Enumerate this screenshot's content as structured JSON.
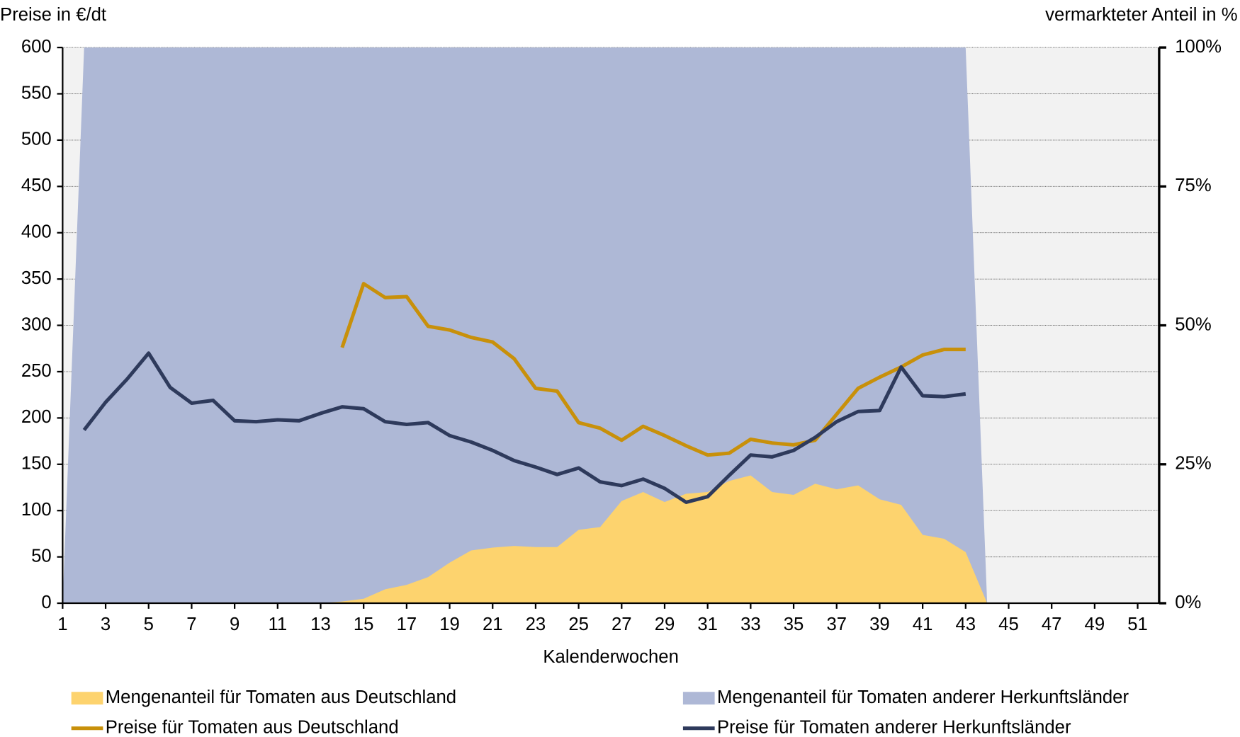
{
  "chart_data": {
    "type": "line",
    "y_label": "Preise in €/dt",
    "y2_label": "vermarkteter Anteil in %",
    "x_label": "Kalenderwochen",
    "x": [
      1,
      2,
      3,
      4,
      5,
      6,
      7,
      8,
      9,
      10,
      11,
      12,
      13,
      14,
      15,
      16,
      17,
      18,
      19,
      20,
      21,
      22,
      23,
      24,
      25,
      26,
      27,
      28,
      29,
      30,
      31,
      32,
      33,
      34,
      35,
      36,
      37,
      38,
      39,
      40,
      41,
      42,
      43,
      44,
      45,
      46,
      47,
      48,
      49,
      50,
      51,
      52
    ],
    "xlim": [
      1,
      52
    ],
    "xticks": [
      1,
      3,
      5,
      7,
      9,
      11,
      13,
      15,
      17,
      19,
      21,
      23,
      25,
      27,
      29,
      31,
      33,
      35,
      37,
      39,
      41,
      43,
      45,
      47,
      49,
      51
    ],
    "ylim": [
      0,
      600
    ],
    "yticks": [
      0,
      50,
      100,
      150,
      200,
      250,
      300,
      350,
      400,
      450,
      500,
      550,
      600
    ],
    "y2lim": [
      0,
      100
    ],
    "y2ticks": [
      {
        "value": 0,
        "label": "0%"
      },
      {
        "value": 25,
        "label": "25%"
      },
      {
        "value": 50,
        "label": "50%"
      },
      {
        "value": 75,
        "label": "75%"
      },
      {
        "value": 100,
        "label": "100%"
      }
    ],
    "grid": true,
    "series": [
      {
        "name": "Mengenanteil für Tomaten aus Deutschland",
        "kind": "area",
        "axis": "y2",
        "color": "#fdd36e",
        "values": [
          0,
          0,
          0,
          0,
          0,
          0,
          0,
          0,
          0,
          0,
          0,
          0,
          0,
          0.3,
          0.8,
          2.5,
          3.3,
          4.7,
          7.3,
          9.5,
          10,
          10.3,
          10.1,
          10.1,
          13.2,
          13.7,
          18.4,
          20,
          18.2,
          19.7,
          20,
          22,
          23,
          20,
          19.5,
          21.5,
          20.5,
          21.2,
          18.7,
          17.7,
          12.3,
          11.6,
          9.2,
          0,
          null,
          null,
          null,
          null,
          null,
          null,
          null,
          null
        ]
      },
      {
        "name": "Mengenanteil für Tomaten anderer Herkunftsländer",
        "kind": "area",
        "axis": "y2",
        "color": "#aeb8d6",
        "values": [
          0,
          100,
          100,
          100,
          100,
          100,
          100,
          100,
          100,
          100,
          100,
          100,
          100,
          99.7,
          99.2,
          97.5,
          96.7,
          95.3,
          92.7,
          90.5,
          90,
          89.7,
          89.9,
          89.9,
          86.8,
          86.3,
          81.6,
          80,
          81.8,
          80.3,
          80,
          78,
          77,
          80,
          80.5,
          78.5,
          79.5,
          78.8,
          81.3,
          82.3,
          87.7,
          88.4,
          90.8,
          0,
          null,
          null,
          null,
          null,
          null,
          null,
          null,
          null
        ]
      },
      {
        "name": "Preise für Tomaten aus Deutschland",
        "kind": "line",
        "axis": "y",
        "color": "#c8900a",
        "values": [
          null,
          null,
          null,
          null,
          null,
          null,
          null,
          null,
          null,
          null,
          null,
          null,
          null,
          276,
          345,
          330,
          331,
          299,
          295,
          287,
          282,
          264,
          232,
          229,
          195,
          189,
          176,
          191,
          181,
          170,
          160,
          162,
          177,
          173,
          171,
          176,
          204,
          232,
          244,
          255,
          268,
          274,
          274,
          null,
          null,
          null,
          null,
          null,
          null,
          null,
          null,
          null
        ]
      },
      {
        "name": "Preise für Tomaten anderer Herkunftsländer",
        "kind": "line",
        "axis": "y",
        "color": "#2e3a5c",
        "values": [
          null,
          187,
          217,
          242,
          270,
          233,
          216,
          219,
          197,
          196,
          198,
          197,
          205,
          212,
          210,
          196,
          193,
          195,
          181,
          174,
          165,
          154,
          147,
          139,
          146,
          131,
          127,
          134,
          124,
          109,
          115,
          138,
          160,
          158,
          165,
          179,
          196,
          207,
          208,
          255,
          224,
          223,
          226,
          null,
          null,
          null,
          null,
          null,
          null,
          null,
          null,
          null
        ]
      }
    ]
  }
}
